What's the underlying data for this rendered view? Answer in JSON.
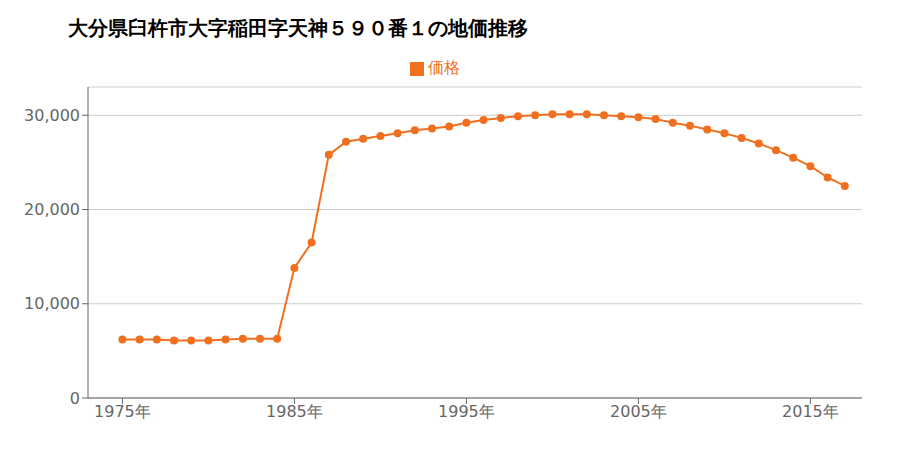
{
  "chart_data": {
    "type": "line",
    "title": "大分県臼杵市大字稲田字天神５９０番１の地価推移",
    "x": [
      1975,
      1976,
      1977,
      1978,
      1979,
      1980,
      1981,
      1982,
      1983,
      1984,
      1985,
      1986,
      1987,
      1988,
      1989,
      1990,
      1991,
      1992,
      1993,
      1994,
      1995,
      1996,
      1997,
      1998,
      1999,
      2000,
      2001,
      2002,
      2003,
      2004,
      2005,
      2006,
      2007,
      2008,
      2009,
      2010,
      2011,
      2012,
      2013,
      2014,
      2015,
      2016,
      2017
    ],
    "series": [
      {
        "name": "価格",
        "color": "#f07020",
        "values": [
          6200,
          6200,
          6200,
          6100,
          6100,
          6100,
          6200,
          6300,
          6300,
          6300,
          13800,
          16500,
          25800,
          27200,
          27500,
          27800,
          28100,
          28400,
          28600,
          28800,
          29200,
          29500,
          29700,
          29900,
          30000,
          30100,
          30100,
          30100,
          30000,
          29900,
          29800,
          29600,
          29200,
          28900,
          28500,
          28100,
          27600,
          27000,
          26300,
          25500,
          24600,
          23400,
          22500
        ]
      }
    ],
    "xlim": [
      1973,
      2018
    ],
    "xticks": [
      {
        "value": 1975,
        "label": "1975年"
      },
      {
        "value": 1985,
        "label": "1985年"
      },
      {
        "value": 1995,
        "label": "1995年"
      },
      {
        "value": 2005,
        "label": "2005年"
      },
      {
        "value": 2015,
        "label": "2015年"
      }
    ],
    "ylim": [
      0,
      33000
    ],
    "yticks": [
      0,
      {
        "value": 10000,
        "label": "10,000"
      },
      {
        "value": 20000,
        "label": "20,000"
      },
      {
        "value": 30000,
        "label": "30,000"
      }
    ],
    "grid": true,
    "legend": "top",
    "marker": "circle"
  }
}
